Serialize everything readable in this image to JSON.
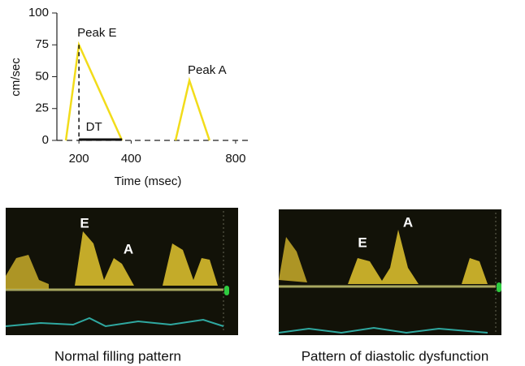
{
  "chart_data": {
    "type": "line",
    "y_label": "cm/sec",
    "x_label": "Time (msec)",
    "x": [
      150,
      200,
      365,
      470,
      570,
      623,
      700
    ],
    "values": [
      0,
      75,
      0,
      null,
      0,
      47,
      0
    ],
    "color": "#f2dc1a",
    "xlim": [
      100,
      850
    ],
    "xticks": [
      200,
      400,
      800
    ],
    "ylim": [
      0,
      100
    ],
    "yticks": [
      0,
      25,
      50,
      75,
      100
    ],
    "annotations": {
      "peak_e": "Peak E",
      "peak_a": "Peak A",
      "dt": "DT"
    }
  },
  "panels": [
    {
      "labels": [
        "E",
        "A"
      ],
      "caption": "Normal filling pattern"
    },
    {
      "labels": [
        "E",
        "A"
      ],
      "caption": "Pattern of diastolic dysfunction"
    }
  ]
}
